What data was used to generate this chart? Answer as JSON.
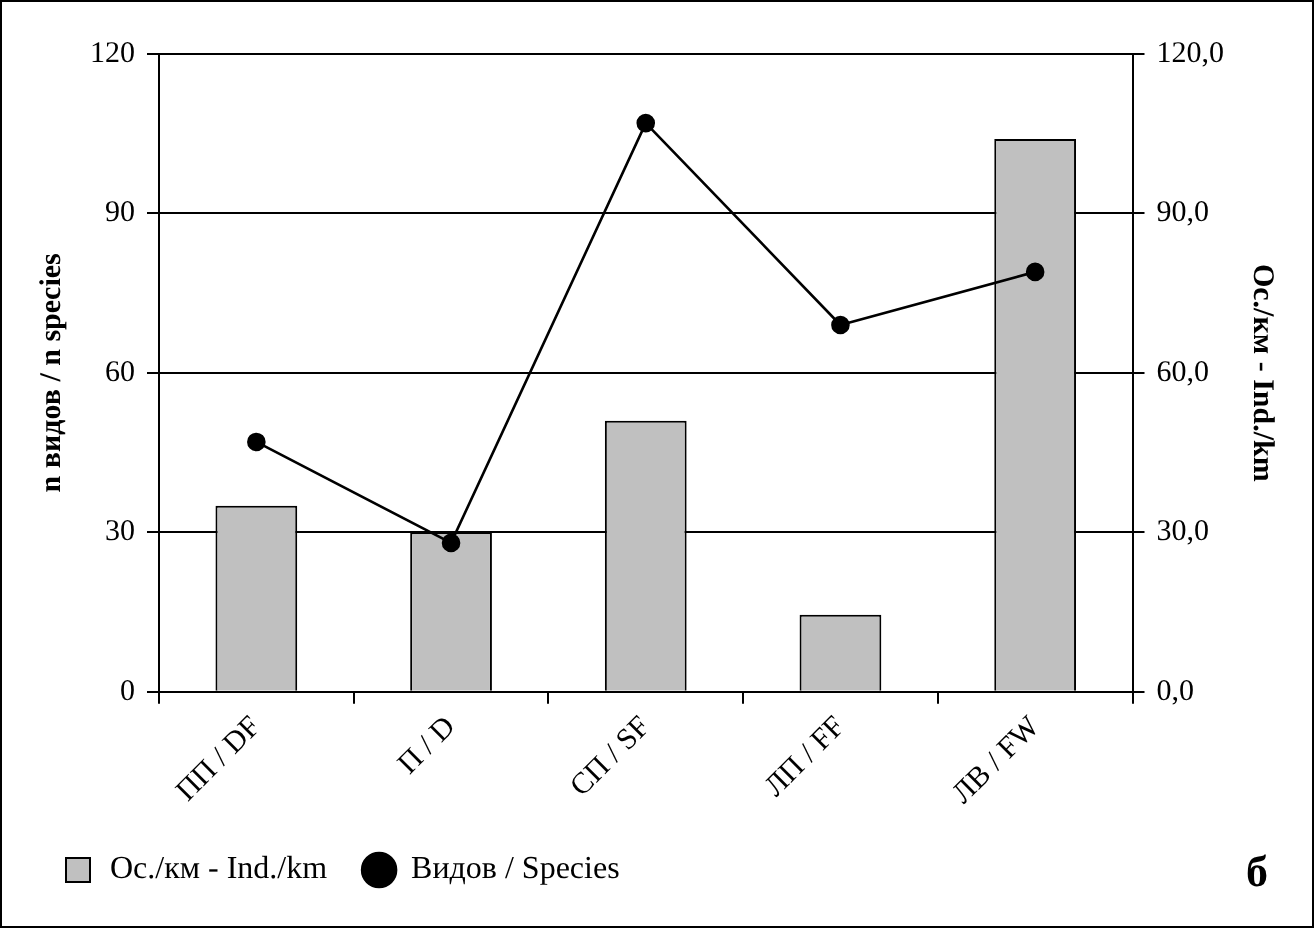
{
  "chart_data": {
    "type": "bar",
    "categories": [
      "ПП / DF",
      "П / D",
      "СП / SF",
      "ЛП / FF",
      "ЛВ / FW"
    ],
    "series": [
      {
        "name": "Ос./км - Ind./km",
        "axis": "y2",
        "color": "#c0c0c0",
        "values": [
          35,
          30,
          51,
          14.5,
          104
        ]
      },
      {
        "name": "Видов / Species",
        "type": "line",
        "axis": "y",
        "color": "#000000",
        "values": [
          47,
          28,
          107,
          69,
          79
        ]
      }
    ],
    "ylabel": "n видов / n species",
    "y2label": "Ос./км - Ind./km",
    "ylim": [
      0,
      120
    ],
    "yticks": [
      0,
      30,
      60,
      90,
      120
    ],
    "y2lim": [
      0,
      120
    ],
    "y2ticks": [
      {
        "value": 0,
        "label": "0,0"
      },
      {
        "value": 30,
        "label": "30,0"
      },
      {
        "value": 60,
        "label": "60,0"
      },
      {
        "value": 90,
        "label": "90,0"
      },
      {
        "value": 120,
        "label": "120,0"
      }
    ],
    "grid": "y",
    "legend": "bottom",
    "marker": "circle",
    "line_style": "solid",
    "annotations": [
      "б"
    ]
  }
}
